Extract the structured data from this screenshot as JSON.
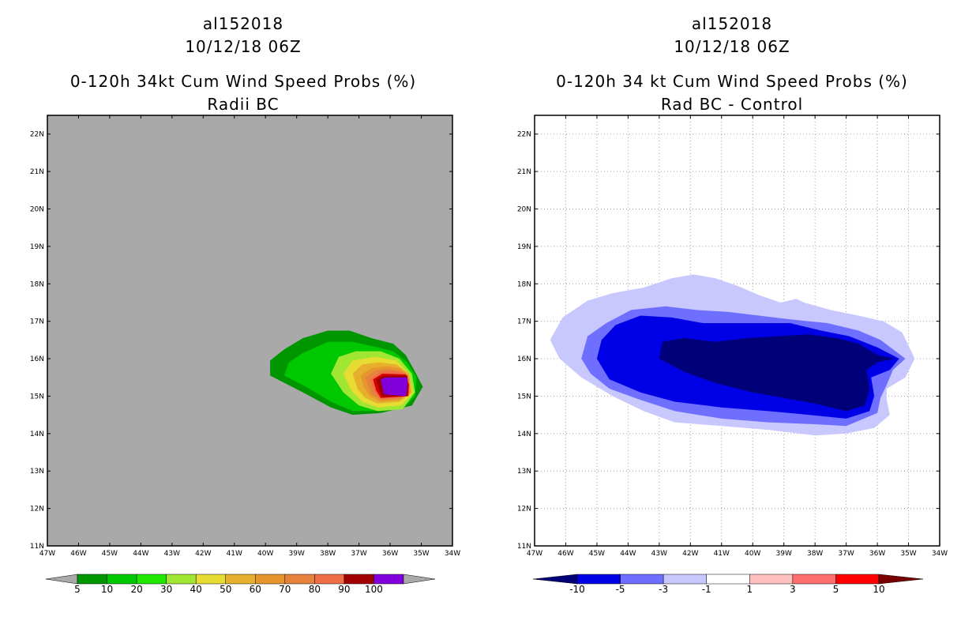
{
  "chart_data": [
    {
      "type": "contour-map",
      "title_lines": [
        "al152018",
        "10/12/18 06Z",
        "0-120h 34kt Cum Wind Speed Probs (%)",
        "Radii BC"
      ],
      "xlabel": "",
      "ylabel": "",
      "xlim": [
        -47,
        -34
      ],
      "ylim": [
        11,
        22.5
      ],
      "x_ticks": [
        -47,
        -46,
        -45,
        -44,
        -43,
        -42,
        -41,
        -40,
        -39,
        -38,
        -37,
        -36,
        -35,
        -34
      ],
      "x_tick_labels": [
        "47W",
        "46W",
        "45W",
        "44W",
        "43W",
        "42W",
        "41W",
        "40W",
        "39W",
        "38W",
        "37W",
        "36W",
        "35W",
        "34W"
      ],
      "y_ticks": [
        11,
        12,
        13,
        14,
        15,
        16,
        17,
        18,
        19,
        20,
        21,
        22
      ],
      "y_tick_labels": [
        "11N",
        "12N",
        "13N",
        "14N",
        "15N",
        "16N",
        "17N",
        "18N",
        "19N",
        "20N",
        "21N",
        "22N"
      ],
      "background": "#a9a9a9",
      "grid": false,
      "colorbar": {
        "levels": [
          "5",
          "10",
          "20",
          "30",
          "40",
          "50",
          "60",
          "70",
          "80",
          "90",
          "100"
        ],
        "colors": [
          "#009600",
          "#00c800",
          "#21e600",
          "#a0e632",
          "#e6dc32",
          "#e6af2d",
          "#e6962d",
          "#e6823c",
          "#f06e46",
          "#a00000",
          "#8200dc"
        ],
        "extend_low": "#a9a9a9",
        "extend_high": "#a9a9a9"
      },
      "contours": [
        {
          "level": 5,
          "color": "#009600",
          "polygon": [
            [
              -39.85,
              15.55
            ],
            [
              -39.85,
              15.95
            ],
            [
              -39.4,
              16.25
            ],
            [
              -38.8,
              16.55
            ],
            [
              -38.0,
              16.75
            ],
            [
              -37.3,
              16.75
            ],
            [
              -36.6,
              16.55
            ],
            [
              -35.9,
              16.4
            ],
            [
              -35.5,
              16.1
            ],
            [
              -35.2,
              15.65
            ],
            [
              -34.95,
              15.25
            ],
            [
              -35.3,
              14.75
            ],
            [
              -36.3,
              14.55
            ],
            [
              -37.2,
              14.5
            ],
            [
              -37.9,
              14.7
            ],
            [
              -38.8,
              15.1
            ]
          ]
        },
        {
          "level": 10,
          "color": "#00c800",
          "polygon": [
            [
              -39.4,
              15.55
            ],
            [
              -39.25,
              15.9
            ],
            [
              -38.8,
              16.15
            ],
            [
              -38.0,
              16.45
            ],
            [
              -37.2,
              16.45
            ],
            [
              -36.4,
              16.3
            ],
            [
              -35.9,
              16.2
            ],
            [
              -35.45,
              15.9
            ],
            [
              -35.15,
              15.5
            ],
            [
              -35.2,
              15.0
            ],
            [
              -35.6,
              14.65
            ],
            [
              -36.4,
              14.6
            ],
            [
              -37.2,
              14.6
            ],
            [
              -37.9,
              14.85
            ],
            [
              -38.7,
              15.25
            ]
          ]
        },
        {
          "level": 20,
          "color": "#a0e632",
          "polygon": [
            [
              -37.9,
              15.6
            ],
            [
              -37.65,
              16.05
            ],
            [
              -37.1,
              16.2
            ],
            [
              -36.3,
              16.2
            ],
            [
              -35.7,
              16.0
            ],
            [
              -35.3,
              15.6
            ],
            [
              -35.2,
              15.1
            ],
            [
              -35.6,
              14.65
            ],
            [
              -36.4,
              14.6
            ],
            [
              -37.0,
              14.75
            ],
            [
              -37.5,
              15.1
            ]
          ]
        },
        {
          "level": 30,
          "color": "#e6dc32",
          "polygon": [
            [
              -37.5,
              15.6
            ],
            [
              -37.2,
              15.95
            ],
            [
              -36.5,
              16.05
            ],
            [
              -35.8,
              15.95
            ],
            [
              -35.4,
              15.6
            ],
            [
              -35.25,
              15.1
            ],
            [
              -35.65,
              14.75
            ],
            [
              -36.4,
              14.7
            ],
            [
              -36.9,
              14.85
            ],
            [
              -37.25,
              15.15
            ]
          ]
        },
        {
          "level": 40,
          "color": "#e6af2d",
          "polygon": [
            [
              -37.2,
              15.6
            ],
            [
              -36.9,
              15.85
            ],
            [
              -36.35,
              15.9
            ],
            [
              -35.8,
              15.85
            ],
            [
              -35.4,
              15.6
            ],
            [
              -35.3,
              15.1
            ],
            [
              -35.7,
              14.85
            ],
            [
              -36.4,
              14.8
            ],
            [
              -36.8,
              14.95
            ],
            [
              -37.05,
              15.2
            ]
          ]
        },
        {
          "level": 50,
          "color": "#e6962d",
          "polygon": [
            [
              -36.95,
              15.55
            ],
            [
              -36.6,
              15.75
            ],
            [
              -36.1,
              15.8
            ],
            [
              -35.7,
              15.75
            ],
            [
              -35.4,
              15.55
            ],
            [
              -35.35,
              15.1
            ],
            [
              -35.7,
              14.9
            ],
            [
              -36.3,
              14.85
            ],
            [
              -36.65,
              15.0
            ],
            [
              -36.85,
              15.25
            ]
          ]
        },
        {
          "level": 60,
          "color": "#e6823c",
          "polygon": [
            [
              -36.8,
              15.5
            ],
            [
              -36.45,
              15.7
            ],
            [
              -36.0,
              15.72
            ],
            [
              -35.6,
              15.65
            ],
            [
              -35.38,
              15.45
            ],
            [
              -35.38,
              15.05
            ],
            [
              -35.75,
              14.92
            ],
            [
              -36.3,
              14.9
            ],
            [
              -36.6,
              15.05
            ]
          ]
        },
        {
          "level": 70,
          "color": "#f06e46",
          "polygon": [
            [
              -36.65,
              15.45
            ],
            [
              -36.3,
              15.65
            ],
            [
              -35.9,
              15.68
            ],
            [
              -35.5,
              15.6
            ],
            [
              -35.38,
              15.3
            ],
            [
              -35.4,
              15.0
            ],
            [
              -35.8,
              14.95
            ],
            [
              -36.3,
              14.92
            ],
            [
              -36.5,
              15.1
            ]
          ]
        },
        {
          "level": 80,
          "color": "#dc0000",
          "polygon": [
            [
              -36.55,
              15.45
            ],
            [
              -36.25,
              15.6
            ],
            [
              -35.5,
              15.58
            ],
            [
              -35.4,
              15.3
            ],
            [
              -35.42,
              15.0
            ],
            [
              -36.3,
              14.95
            ],
            [
              -36.45,
              15.15
            ]
          ]
        },
        {
          "level": 90,
          "color": "#a00000",
          "polygon": [
            [
              -36.45,
              15.45
            ],
            [
              -36.2,
              15.55
            ],
            [
              -35.45,
              15.55
            ],
            [
              -35.42,
              15.25
            ],
            [
              -35.45,
              15.0
            ],
            [
              -36.25,
              14.98
            ],
            [
              -36.35,
              15.15
            ]
          ]
        },
        {
          "level": 100,
          "color": "#8200dc",
          "polygon": [
            [
              -36.3,
              15.45
            ],
            [
              -36.15,
              15.5
            ],
            [
              -35.45,
              15.5
            ],
            [
              -35.45,
              15.25
            ],
            [
              -35.5,
              15.0
            ],
            [
              -36.2,
              15.05
            ]
          ]
        }
      ]
    },
    {
      "type": "contour-map",
      "title_lines": [
        "al152018",
        "10/12/18 06Z",
        "0-120h 34 kt Cum Wind Speed Probs (%)",
        "Rad BC - Control"
      ],
      "xlabel": "",
      "ylabel": "",
      "xlim": [
        -47,
        -34
      ],
      "ylim": [
        11,
        22.5
      ],
      "x_ticks": [
        -47,
        -46,
        -45,
        -44,
        -43,
        -42,
        -41,
        -40,
        -39,
        -38,
        -37,
        -36,
        -35,
        -34
      ],
      "x_tick_labels": [
        "47W",
        "46W",
        "45W",
        "44W",
        "43W",
        "42W",
        "41W",
        "40W",
        "39W",
        "38W",
        "37W",
        "36W",
        "35W",
        "34W"
      ],
      "y_ticks": [
        11,
        12,
        13,
        14,
        15,
        16,
        17,
        18,
        19,
        20,
        21,
        22
      ],
      "y_tick_labels": [
        "11N",
        "12N",
        "13N",
        "14N",
        "15N",
        "16N",
        "17N",
        "18N",
        "19N",
        "20N",
        "21N",
        "22N"
      ],
      "background": "#ffffff",
      "grid": true,
      "colorbar": {
        "levels": [
          "-10",
          "-5",
          "-3",
          "-1",
          "1",
          "3",
          "5",
          "10"
        ],
        "colors": [
          "#0000e6",
          "#6e6eff",
          "#c8c8ff",
          "#ffffff",
          "#ffc0c0",
          "#ff6e6e",
          "#ff0000"
        ],
        "extend_low": "#000078",
        "extend_high": "#780000"
      },
      "contours": [
        {
          "level": -1,
          "color": "#c8c8ff",
          "polygon": [
            [
              -46.5,
              16.5
            ],
            [
              -46.1,
              17.1
            ],
            [
              -45.3,
              17.55
            ],
            [
              -44.5,
              17.75
            ],
            [
              -43.5,
              17.9
            ],
            [
              -42.6,
              18.15
            ],
            [
              -41.9,
              18.25
            ],
            [
              -41.2,
              18.15
            ],
            [
              -40.5,
              17.95
            ],
            [
              -39.8,
              17.7
            ],
            [
              -39.1,
              17.5
            ],
            [
              -38.6,
              17.6
            ],
            [
              -38.35,
              17.5
            ],
            [
              -37.5,
              17.3
            ],
            [
              -36.6,
              17.15
            ],
            [
              -35.8,
              17.0
            ],
            [
              -35.2,
              16.7
            ],
            [
              -34.8,
              16.0
            ],
            [
              -35.1,
              15.5
            ],
            [
              -35.7,
              15.2
            ],
            [
              -35.7,
              14.9
            ],
            [
              -35.6,
              14.5
            ],
            [
              -36.1,
              14.15
            ],
            [
              -37.0,
              14.0
            ],
            [
              -38.0,
              13.95
            ],
            [
              -39.5,
              14.1
            ],
            [
              -41.0,
              14.2
            ],
            [
              -42.5,
              14.3
            ],
            [
              -43.5,
              14.6
            ],
            [
              -44.5,
              15.0
            ],
            [
              -45.5,
              15.5
            ],
            [
              -46.2,
              16.0
            ]
          ]
        },
        {
          "level": -3,
          "color": "#6e6eff",
          "polygon": [
            [
              -45.5,
              16.0
            ],
            [
              -45.3,
              16.6
            ],
            [
              -44.7,
              16.95
            ],
            [
              -43.9,
              17.3
            ],
            [
              -42.8,
              17.4
            ],
            [
              -41.8,
              17.3
            ],
            [
              -40.8,
              17.25
            ],
            [
              -39.8,
              17.15
            ],
            [
              -38.8,
              17.05
            ],
            [
              -37.6,
              16.95
            ],
            [
              -36.6,
              16.75
            ],
            [
              -35.9,
              16.5
            ],
            [
              -35.1,
              16.0
            ],
            [
              -35.5,
              15.7
            ],
            [
              -35.7,
              15.3
            ],
            [
              -35.9,
              14.95
            ],
            [
              -36.0,
              14.55
            ],
            [
              -37.0,
              14.2
            ],
            [
              -38.0,
              14.25
            ],
            [
              -39.5,
              14.3
            ],
            [
              -41.0,
              14.4
            ],
            [
              -42.5,
              14.6
            ],
            [
              -43.6,
              14.9
            ],
            [
              -44.6,
              15.2
            ],
            [
              -45.2,
              15.6
            ]
          ]
        },
        {
          "level": -5,
          "color": "#0000e6",
          "polygon": [
            [
              -45.0,
              16.0
            ],
            [
              -44.85,
              16.5
            ],
            [
              -44.4,
              16.9
            ],
            [
              -43.6,
              17.15
            ],
            [
              -42.6,
              17.1
            ],
            [
              -41.6,
              16.95
            ],
            [
              -40.7,
              16.95
            ],
            [
              -39.8,
              16.95
            ],
            [
              -38.8,
              16.95
            ],
            [
              -37.8,
              16.75
            ],
            [
              -36.9,
              16.6
            ],
            [
              -36.0,
              16.3
            ],
            [
              -35.3,
              16.0
            ],
            [
              -35.6,
              15.7
            ],
            [
              -36.2,
              15.5
            ],
            [
              -36.1,
              15.0
            ],
            [
              -36.25,
              14.6
            ],
            [
              -37.0,
              14.4
            ],
            [
              -38.2,
              14.5
            ],
            [
              -39.5,
              14.6
            ],
            [
              -41.0,
              14.7
            ],
            [
              -42.5,
              14.85
            ],
            [
              -43.6,
              15.1
            ],
            [
              -44.6,
              15.45
            ]
          ]
        },
        {
          "level": -10,
          "color": "#000078",
          "polygon": [
            [
              -43.0,
              16.0
            ],
            [
              -42.9,
              16.45
            ],
            [
              -42.2,
              16.55
            ],
            [
              -41.2,
              16.45
            ],
            [
              -40.2,
              16.55
            ],
            [
              -39.2,
              16.6
            ],
            [
              -38.2,
              16.65
            ],
            [
              -37.3,
              16.55
            ],
            [
              -36.6,
              16.4
            ],
            [
              -36.0,
              16.1
            ],
            [
              -35.45,
              16.0
            ],
            [
              -36.0,
              15.9
            ],
            [
              -36.35,
              15.7
            ],
            [
              -36.25,
              15.2
            ],
            [
              -36.4,
              14.75
            ],
            [
              -37.0,
              14.6
            ],
            [
              -38.0,
              14.8
            ],
            [
              -39.0,
              14.95
            ],
            [
              -40.0,
              15.1
            ],
            [
              -41.2,
              15.35
            ],
            [
              -42.2,
              15.65
            ]
          ]
        }
      ]
    }
  ]
}
